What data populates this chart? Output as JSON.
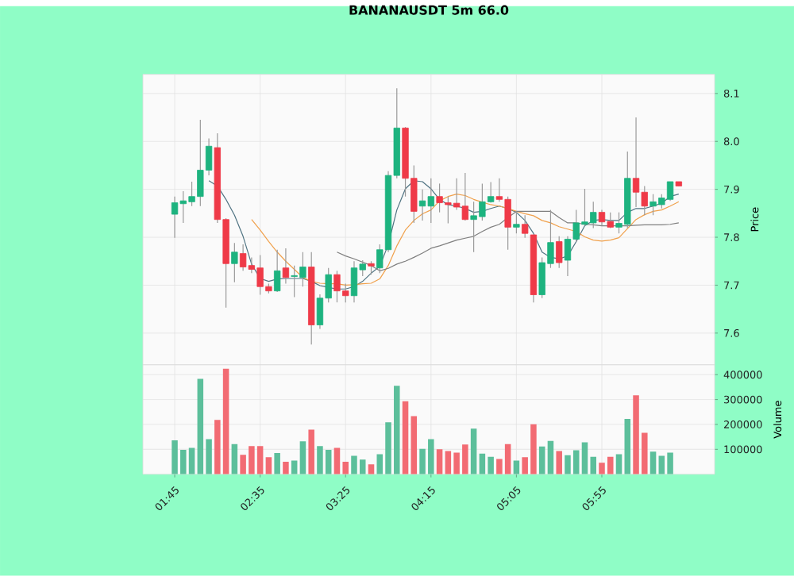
{
  "chart_data": [
    {
      "type": "candlestick",
      "title": "BANANAUSDT 5m 66.0",
      "ylabel": "Price",
      "grid": true,
      "tick_labels": "y",
      "categories": [
        null,
        null,
        null,
        null,
        null,
        null,
        null,
        null,
        null,
        null,
        null,
        null,
        null,
        null,
        null,
        null,
        null,
        null,
        null,
        null,
        null,
        null,
        null,
        null,
        null,
        null,
        null,
        null,
        null,
        null,
        null,
        null,
        null,
        null,
        null,
        null,
        null,
        null,
        null,
        null,
        null,
        null,
        null,
        null,
        null,
        null,
        null,
        null,
        null,
        null,
        null,
        null,
        null,
        null,
        null,
        null,
        null,
        null,
        null,
        null
      ],
      "ohlc": [
        [
          7.848,
          7.885,
          7.799,
          7.872
        ],
        [
          7.87,
          7.896,
          7.83,
          7.876
        ],
        [
          7.874,
          7.916,
          7.865,
          7.885
        ],
        [
          7.885,
          8.045,
          7.865,
          7.94
        ],
        [
          7.94,
          8.006,
          7.929,
          7.99
        ],
        [
          7.987,
          8.017,
          7.83,
          7.837
        ],
        [
          7.837,
          7.84,
          7.653,
          7.745
        ],
        [
          7.745,
          7.788,
          7.706,
          7.769
        ],
        [
          7.766,
          7.785,
          7.73,
          7.738
        ],
        [
          7.741,
          7.758,
          7.725,
          7.733
        ],
        [
          7.736,
          7.763,
          7.68,
          7.697
        ],
        [
          7.697,
          7.703,
          7.683,
          7.688
        ],
        [
          7.688,
          7.774,
          7.686,
          7.73
        ],
        [
          7.736,
          7.777,
          7.703,
          7.716
        ],
        [
          7.718,
          7.741,
          7.675,
          7.72
        ],
        [
          7.716,
          7.769,
          7.697,
          7.738
        ],
        [
          7.738,
          7.769,
          7.576,
          7.617
        ],
        [
          7.617,
          7.681,
          7.609,
          7.673
        ],
        [
          7.673,
          7.736,
          7.664,
          7.722
        ],
        [
          7.722,
          7.73,
          7.664,
          7.688
        ],
        [
          7.688,
          7.703,
          7.664,
          7.678
        ],
        [
          7.678,
          7.75,
          7.664,
          7.736
        ],
        [
          7.732,
          7.752,
          7.719,
          7.744
        ],
        [
          7.745,
          7.75,
          7.722,
          7.74
        ],
        [
          7.736,
          7.785,
          7.725,
          7.774
        ],
        [
          7.774,
          7.938,
          7.769,
          7.929
        ],
        [
          7.929,
          8.111,
          7.923,
          8.028
        ],
        [
          8.028,
          8.03,
          7.885,
          7.923
        ],
        [
          7.923,
          7.95,
          7.83,
          7.854
        ],
        [
          7.865,
          7.9,
          7.835,
          7.876
        ],
        [
          7.865,
          7.923,
          7.83,
          7.885
        ],
        [
          7.885,
          7.912,
          7.852,
          7.872
        ],
        [
          7.872,
          7.885,
          7.829,
          7.868
        ],
        [
          7.871,
          7.923,
          7.857,
          7.863
        ],
        [
          7.865,
          7.934,
          7.835,
          7.837
        ],
        [
          7.837,
          7.874,
          7.769,
          7.845
        ],
        [
          7.843,
          7.912,
          7.835,
          7.874
        ],
        [
          7.874,
          7.915,
          7.872,
          7.885
        ],
        [
          7.885,
          7.923,
          7.874,
          7.879
        ],
        [
          7.879,
          7.885,
          7.774,
          7.821
        ],
        [
          7.821,
          7.854,
          7.808,
          7.827
        ],
        [
          7.827,
          7.846,
          7.799,
          7.808
        ],
        [
          7.805,
          7.805,
          7.664,
          7.68
        ],
        [
          7.68,
          7.758,
          7.673,
          7.747
        ],
        [
          7.745,
          7.857,
          7.736,
          7.789
        ],
        [
          7.791,
          7.802,
          7.736,
          7.747
        ],
        [
          7.752,
          7.802,
          7.719,
          7.796
        ],
        [
          7.796,
          7.857,
          7.791,
          7.83
        ],
        [
          7.827,
          7.901,
          7.824,
          7.832
        ],
        [
          7.83,
          7.874,
          7.819,
          7.852
        ],
        [
          7.852,
          7.857,
          7.824,
          7.832
        ],
        [
          7.833,
          7.852,
          7.819,
          7.821
        ],
        [
          7.821,
          7.852,
          7.808,
          7.829
        ],
        [
          7.827,
          7.979,
          7.819,
          7.923
        ],
        [
          7.923,
          8.05,
          7.863,
          7.894
        ],
        [
          7.894,
          7.907,
          7.846,
          7.865
        ],
        [
          7.865,
          7.89,
          7.846,
          7.874
        ],
        [
          7.868,
          7.89,
          7.86,
          7.882
        ],
        [
          7.879,
          7.916,
          7.876,
          7.916
        ],
        [
          7.916,
          7.916,
          7.907,
          7.907
        ]
      ],
      "colors": [
        "#1db37f",
        "#1db37f",
        "#1db37f",
        "#1db37f",
        "#1db37f",
        "#ef3a48",
        "#ef3a48",
        "#1db37f",
        "#ef3a48",
        "#ef3a48",
        "#ef3a48",
        "#ef3a48",
        "#1db37f",
        "#ef3a48",
        "#1db37f",
        "#1db37f",
        "#ef3a48",
        "#1db37f",
        "#1db37f",
        "#ef3a48",
        "#ef3a48",
        "#1db37f",
        "#1db37f",
        "#ef3a48",
        "#1db37f",
        "#1db37f",
        "#1db37f",
        "#ef3a48",
        "#ef3a48",
        "#1db37f",
        "#1db37f",
        "#ef3a48",
        "#ef3a48",
        "#ef3a48",
        "#ef3a48",
        "#1db37f",
        "#1db37f",
        "#1db37f",
        "#ef3a48",
        "#ef3a48",
        "#1db37f",
        "#ef3a48",
        "#ef3a48",
        "#1db37f",
        "#1db37f",
        "#ef3a48",
        "#1db37f",
        "#1db37f",
        "#1db37f",
        "#1db37f",
        "#ef3a48",
        "#ef3a48",
        "#1db37f",
        "#1db37f",
        "#ef3a48",
        "#ef3a48",
        "#1db37f",
        "#1db37f",
        "#1db37f",
        "#ef3a48"
      ],
      "series": [
        {
          "type": "line",
          "color": "#4f7382",
          "values": [
            null,
            null,
            null,
            null,
            7.918,
            7.907,
            7.879,
            7.846,
            7.802,
            7.744,
            7.714,
            7.708,
            7.713,
            7.714,
            7.714,
            7.714,
            7.708,
            7.699,
            7.695,
            7.692,
            7.692,
            7.697,
            7.708,
            7.725,
            7.739,
            7.785,
            7.857,
            7.901,
            7.918,
            7.916,
            7.901,
            7.879,
            7.868,
            7.865,
            7.86,
            7.852,
            7.854,
            7.86,
            7.865,
            7.86,
            7.852,
            7.835,
            7.808,
            7.769,
            7.758,
            7.755,
            7.761,
            7.791,
            7.824,
            7.835,
            7.837,
            7.835,
            7.835,
            7.852,
            7.86,
            7.86,
            7.865,
            7.871,
            7.885,
            7.89
          ]
        },
        {
          "type": "line",
          "color": "#f0a04b",
          "values": [
            null,
            null,
            null,
            null,
            null,
            null,
            null,
            null,
            null,
            7.837,
            7.815,
            7.791,
            7.769,
            7.75,
            7.733,
            7.716,
            7.708,
            7.704,
            7.703,
            7.703,
            7.7,
            7.701,
            7.703,
            7.704,
            7.713,
            7.741,
            7.782,
            7.815,
            7.835,
            7.849,
            7.857,
            7.876,
            7.885,
            7.89,
            7.887,
            7.879,
            7.873,
            7.868,
            7.865,
            7.86,
            7.854,
            7.849,
            7.845,
            7.835,
            7.83,
            7.822,
            7.817,
            7.812,
            7.801,
            7.794,
            7.792,
            7.794,
            7.799,
            7.818,
            7.837,
            7.847,
            7.854,
            7.857,
            7.865,
            7.874
          ]
        },
        {
          "type": "line",
          "color": "#7f7f7f",
          "values": [
            null,
            null,
            null,
            null,
            null,
            null,
            null,
            null,
            null,
            null,
            null,
            null,
            null,
            null,
            null,
            null,
            null,
            null,
            null,
            7.769,
            7.761,
            7.755,
            7.748,
            7.741,
            7.73,
            7.735,
            7.744,
            7.75,
            7.758,
            7.767,
            7.777,
            7.782,
            7.788,
            7.794,
            7.798,
            7.802,
            7.812,
            7.821,
            7.827,
            7.841,
            7.854,
            7.854,
            7.854,
            7.854,
            7.854,
            7.841,
            7.83,
            7.83,
            7.827,
            7.826,
            7.824,
            7.824,
            7.824,
            7.824,
            7.825,
            7.826,
            7.826,
            7.826,
            7.827,
            7.83
          ]
        }
      ],
      "ylim": [
        7.534,
        8.14
      ],
      "yticks": [
        7.6,
        7.7,
        7.8,
        7.9,
        {
          "value": 8,
          "label": "8.0"
        },
        8.1
      ]
    },
    {
      "type": "bar",
      "ylabel": "Volume",
      "grid": true,
      "categories": [
        "01:45",
        null,
        null,
        null,
        null,
        null,
        null,
        null,
        null,
        null,
        "02:35",
        null,
        null,
        null,
        null,
        null,
        null,
        null,
        null,
        null,
        "03:25",
        null,
        null,
        null,
        null,
        null,
        null,
        null,
        null,
        null,
        "04:15",
        null,
        null,
        null,
        null,
        null,
        null,
        null,
        null,
        null,
        "05:05",
        null,
        null,
        null,
        null,
        null,
        null,
        null,
        null,
        null,
        "05:55",
        null,
        null,
        null,
        null,
        null,
        null,
        null,
        null,
        null
      ],
      "values": [
        136000,
        98000,
        106000,
        383000,
        141000,
        218000,
        424000,
        121000,
        78000,
        113000,
        113000,
        68000,
        85000,
        50000,
        55000,
        132000,
        179000,
        113000,
        98000,
        106000,
        50000,
        74000,
        59000,
        40000,
        80000,
        209000,
        355000,
        293000,
        233000,
        102000,
        141000,
        100000,
        93000,
        87000,
        119000,
        183000,
        83000,
        70000,
        61000,
        121000,
        55000,
        68000,
        201000,
        111000,
        134000,
        93000,
        76000,
        96000,
        128000,
        70000,
        46000,
        70000,
        80000,
        222000,
        317000,
        166000,
        91000,
        74000,
        87000,
        null
      ],
      "colors": [
        "#5cbf9b",
        "#5cbf9b",
        "#5cbf9b",
        "#5cbf9b",
        "#5cbf9b",
        "#f26b73",
        "#f26b73",
        "#5cbf9b",
        "#f26b73",
        "#f26b73",
        "#f26b73",
        "#f26b73",
        "#5cbf9b",
        "#f26b73",
        "#5cbf9b",
        "#5cbf9b",
        "#f26b73",
        "#5cbf9b",
        "#5cbf9b",
        "#f26b73",
        "#f26b73",
        "#5cbf9b",
        "#5cbf9b",
        "#f26b73",
        "#5cbf9b",
        "#5cbf9b",
        "#5cbf9b",
        "#f26b73",
        "#f26b73",
        "#5cbf9b",
        "#5cbf9b",
        "#f26b73",
        "#f26b73",
        "#f26b73",
        "#f26b73",
        "#5cbf9b",
        "#5cbf9b",
        "#5cbf9b",
        "#f26b73",
        "#f26b73",
        "#5cbf9b",
        "#f26b73",
        "#f26b73",
        "#5cbf9b",
        "#5cbf9b",
        "#f26b73",
        "#5cbf9b",
        "#5cbf9b",
        "#5cbf9b",
        "#5cbf9b",
        "#f26b73",
        "#f26b73",
        "#5cbf9b",
        "#5cbf9b",
        "#f26b73",
        "#f26b73",
        "#5cbf9b",
        "#5cbf9b",
        "#5cbf9b",
        "#f26b73"
      ],
      "ylim": [
        0,
        440000
      ],
      "yticks": [
        100000,
        200000,
        300000,
        400000
      ]
    }
  ]
}
